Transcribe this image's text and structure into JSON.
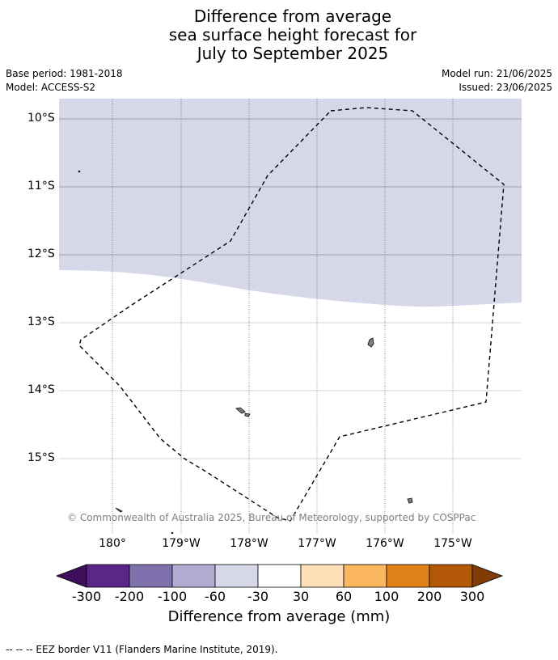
{
  "title": {
    "line1": "Difference from average",
    "line2": "sea surface height forecast for",
    "line3": "July to September 2025"
  },
  "meta": {
    "base_period": "Base period: 1981-2018",
    "model": "Model: ACCESS-S2",
    "model_run": "Model run: 21/06/2025",
    "issued": "Issued: 23/06/2025"
  },
  "map": {
    "lat_labels": [
      "10°S",
      "11°S",
      "12°S",
      "13°S",
      "14°S",
      "15°S"
    ],
    "lon_labels": [
      "180°",
      "179°W",
      "178°W",
      "177°W",
      "176°W",
      "175°W"
    ],
    "copyright": "© Commonwealth of Australia 2025, Bureau of Meteorology, supported by COSPPac",
    "anomaly_band": "-60 to -30",
    "colors": {
      "band_fill": "#d6d7e8",
      "land": "#808080",
      "eez": "#000000",
      "grid": "#909090"
    }
  },
  "colorbar": {
    "ticks": [
      "-300",
      "-200",
      "-100",
      "-60",
      "-30",
      "30",
      "60",
      "100",
      "200",
      "300"
    ],
    "colors": [
      "#3f0d5a",
      "#5a2688",
      "#7f70ae",
      "#b1abd1",
      "#d6d7e8",
      "#ffffff",
      "#fee0b6",
      "#fbb660",
      "#e0811a",
      "#b35806",
      "#7f3b08"
    ],
    "label": "Difference from average (mm)"
  },
  "legend": {
    "eez": "--  --  -- EEZ border V11 (Flanders Marine Institute, 2019)."
  }
}
